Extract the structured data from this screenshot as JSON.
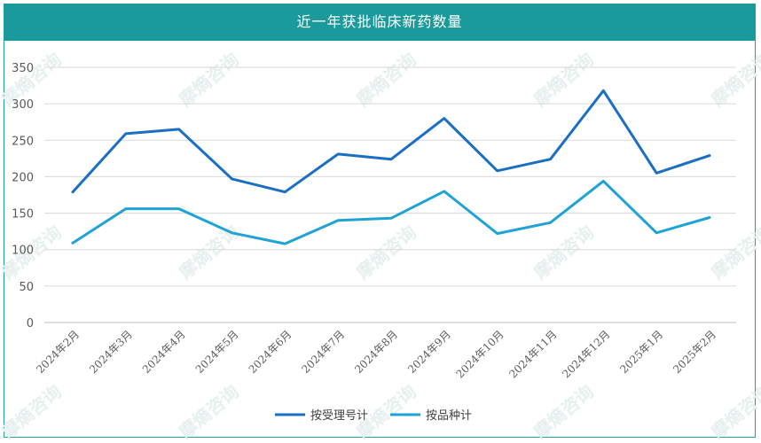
{
  "chart_data": {
    "type": "line",
    "title": "近一年获批临床新药数量",
    "categories": [
      "2024年2月",
      "2024年3月",
      "2024年4月",
      "2024年5月",
      "2024年6月",
      "2024年7月",
      "2024年8月",
      "2024年9月",
      "2024年10月",
      "2024年11月",
      "2024年12月",
      "2025年1月",
      "2025年2月"
    ],
    "series": [
      {
        "name": "按受理号计",
        "color": "#1a6fc4",
        "values": [
          179,
          259,
          265,
          197,
          179,
          231,
          224,
          280,
          208,
          224,
          318,
          205,
          229
        ]
      },
      {
        "name": "按品种计",
        "color": "#1fa3d6",
        "values": [
          109,
          156,
          156,
          123,
          108,
          140,
          143,
          180,
          122,
          137,
          194,
          123,
          144
        ]
      }
    ],
    "ylim": [
      0,
      350
    ],
    "yticks": [
      0,
      50,
      100,
      150,
      200,
      250,
      300,
      350
    ],
    "grid": true,
    "legend": "bottom-center",
    "xlabel": "",
    "ylabel": ""
  },
  "watermark": "摩熵咨询"
}
